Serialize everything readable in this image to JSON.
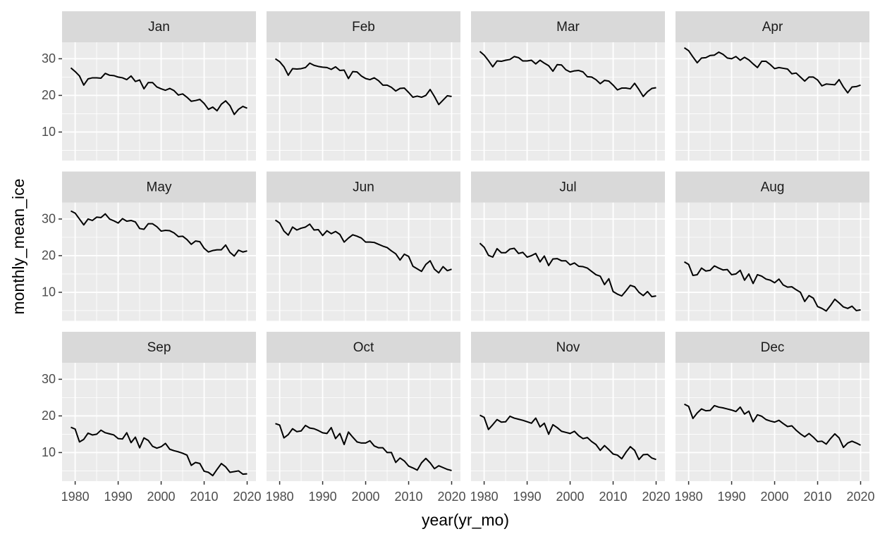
{
  "chart_data": {
    "type": "line",
    "xlabel": "year(yr_mo)",
    "ylabel": "monthly_mean_ice",
    "x": [
      1979,
      1980,
      1981,
      1982,
      1983,
      1984,
      1985,
      1986,
      1987,
      1988,
      1989,
      1990,
      1991,
      1992,
      1993,
      1994,
      1995,
      1996,
      1997,
      1998,
      1999,
      2000,
      2001,
      2002,
      2003,
      2004,
      2005,
      2006,
      2007,
      2008,
      2009,
      2010,
      2011,
      2012,
      2013,
      2014,
      2015,
      2016,
      2017,
      2018,
      2019,
      2020
    ],
    "xlim": [
      1976.95,
      2022.05
    ],
    "xticks": [
      1980,
      1990,
      2000,
      2010,
      2020
    ],
    "ylim": [
      2.2,
      34.5
    ],
    "yticks": [
      10,
      20,
      30
    ],
    "grid": true,
    "series": [
      {
        "name": "Jan",
        "color": "#000000",
        "values": [
          27.5,
          26.5,
          25.3,
          22.8,
          24.5,
          24.8,
          24.8,
          24.7,
          26.0,
          25.5,
          25.4,
          25.0,
          24.8,
          24.3,
          25.3,
          23.8,
          24.2,
          21.8,
          23.5,
          23.5,
          22.3,
          21.8,
          21.4,
          21.9,
          21.3,
          20.1,
          20.4,
          19.5,
          18.4,
          18.6,
          18.9,
          17.8,
          16.2,
          16.8,
          15.8,
          17.6,
          18.5,
          17.2,
          14.8,
          16.2,
          17.0,
          16.5
        ]
      },
      {
        "name": "Feb",
        "color": "#000000",
        "values": [
          30.0,
          29.2,
          27.8,
          25.5,
          27.3,
          27.2,
          27.3,
          27.6,
          28.8,
          28.2,
          27.9,
          27.7,
          27.6,
          27.1,
          27.8,
          26.8,
          26.9,
          24.6,
          26.5,
          26.4,
          25.3,
          24.6,
          24.3,
          24.8,
          24.0,
          22.8,
          22.8,
          22.2,
          21.2,
          21.9,
          22.0,
          20.8,
          19.5,
          19.8,
          19.5,
          20.0,
          21.6,
          19.7,
          17.5,
          18.7,
          19.9,
          19.7
        ]
      },
      {
        "name": "Mar",
        "color": "#000000",
        "values": [
          32.0,
          31.0,
          29.5,
          27.8,
          29.4,
          29.3,
          29.6,
          29.8,
          30.6,
          30.3,
          29.4,
          29.4,
          29.6,
          28.6,
          29.6,
          28.8,
          28.1,
          26.6,
          28.4,
          28.3,
          27.0,
          26.4,
          26.7,
          26.8,
          26.4,
          25.1,
          25.0,
          24.3,
          23.2,
          24.1,
          23.9,
          22.8,
          21.5,
          22.0,
          22.0,
          21.8,
          23.3,
          21.6,
          19.7,
          21.0,
          21.9,
          22.1
        ]
      },
      {
        "name": "Apr",
        "color": "#000000",
        "values": [
          33.0,
          32.2,
          30.5,
          28.9,
          30.2,
          30.3,
          30.9,
          31.0,
          31.8,
          31.2,
          30.2,
          30.0,
          30.6,
          29.6,
          30.4,
          29.7,
          28.6,
          27.6,
          29.3,
          29.3,
          28.4,
          27.3,
          27.6,
          27.4,
          27.2,
          25.9,
          26.1,
          25.0,
          23.9,
          25.0,
          25.0,
          24.2,
          22.6,
          23.1,
          23.0,
          22.9,
          24.3,
          22.3,
          20.7,
          22.3,
          22.4,
          22.8
        ]
      },
      {
        "name": "May",
        "color": "#000000",
        "values": [
          32.2,
          31.6,
          30.0,
          28.4,
          30.0,
          29.6,
          30.5,
          30.4,
          31.4,
          30.0,
          29.5,
          28.9,
          30.1,
          29.4,
          29.6,
          29.2,
          27.4,
          27.2,
          28.7,
          28.7,
          27.9,
          26.7,
          26.9,
          26.8,
          26.2,
          25.2,
          25.3,
          24.4,
          23.1,
          24.0,
          23.8,
          22.0,
          21.0,
          21.4,
          21.6,
          21.6,
          22.9,
          20.9,
          19.9,
          21.5,
          21.0,
          21.3
        ]
      },
      {
        "name": "Jun",
        "color": "#000000",
        "values": [
          29.7,
          28.9,
          26.7,
          25.6,
          27.8,
          27.0,
          27.5,
          27.8,
          28.6,
          27.0,
          27.1,
          25.5,
          26.8,
          26.0,
          26.6,
          25.8,
          23.7,
          24.8,
          25.7,
          25.3,
          24.8,
          23.7,
          23.7,
          23.6,
          23.1,
          22.6,
          22.2,
          21.3,
          20.5,
          18.8,
          20.4,
          19.8,
          17.1,
          16.4,
          15.7,
          17.6,
          18.6,
          16.3,
          15.3,
          17.0,
          15.9,
          16.3
        ]
      },
      {
        "name": "Jul",
        "color": "#000000",
        "values": [
          23.4,
          22.3,
          20.1,
          19.6,
          21.9,
          20.8,
          20.8,
          21.8,
          22.0,
          20.6,
          20.9,
          19.6,
          20.0,
          20.6,
          18.3,
          19.9,
          17.3,
          19.1,
          19.2,
          18.6,
          18.6,
          17.5,
          18.0,
          17.1,
          17.0,
          16.6,
          15.7,
          14.8,
          14.4,
          12.1,
          13.7,
          10.2,
          9.5,
          9.0,
          10.4,
          11.9,
          11.5,
          10.0,
          9.1,
          10.2,
          8.8,
          9.0
        ]
      },
      {
        "name": "Aug",
        "color": "#000000",
        "values": [
          18.3,
          17.6,
          14.6,
          14.8,
          16.6,
          15.8,
          16.0,
          17.2,
          16.6,
          16.1,
          16.2,
          14.8,
          15.0,
          16.0,
          13.3,
          15.0,
          12.4,
          14.8,
          14.4,
          13.6,
          13.3,
          12.6,
          13.6,
          12.0,
          11.4,
          11.5,
          10.7,
          10.0,
          7.5,
          9.1,
          8.4,
          6.1,
          5.6,
          4.9,
          6.4,
          8.1,
          7.1,
          6.0,
          5.6,
          6.2,
          5.0,
          5.2
        ]
      },
      {
        "name": "Sep",
        "color": "#000000",
        "values": [
          16.9,
          16.4,
          12.9,
          13.6,
          15.3,
          14.8,
          15.0,
          16.1,
          15.4,
          15.1,
          14.8,
          13.8,
          13.7,
          15.4,
          12.7,
          14.2,
          11.3,
          14.0,
          13.3,
          11.7,
          11.2,
          11.6,
          12.5,
          10.9,
          10.5,
          10.2,
          9.8,
          9.3,
          6.5,
          7.3,
          7.0,
          4.9,
          4.6,
          3.7,
          5.4,
          7.0,
          6.1,
          4.6,
          4.8,
          5.0,
          4.1,
          4.2
        ]
      },
      {
        "name": "Oct",
        "color": "#000000",
        "values": [
          17.9,
          17.5,
          14.0,
          14.9,
          16.5,
          15.7,
          15.9,
          17.4,
          16.7,
          16.5,
          16.0,
          15.4,
          15.2,
          16.8,
          13.8,
          15.2,
          12.2,
          15.6,
          14.2,
          12.9,
          12.6,
          12.6,
          13.2,
          11.8,
          11.3,
          11.3,
          10.0,
          10.0,
          7.3,
          8.5,
          7.7,
          6.3,
          5.8,
          5.2,
          7.2,
          8.4,
          7.2,
          5.6,
          6.4,
          5.9,
          5.4,
          5.1
        ]
      },
      {
        "name": "Nov",
        "color": "#000000",
        "values": [
          20.2,
          19.6,
          16.3,
          17.6,
          19.0,
          18.3,
          18.4,
          19.9,
          19.4,
          19.1,
          18.8,
          18.4,
          18.0,
          19.4,
          17.0,
          18.0,
          15.0,
          17.6,
          16.8,
          15.8,
          15.5,
          15.2,
          15.8,
          14.6,
          13.8,
          14.1,
          13.0,
          12.2,
          10.6,
          11.9,
          10.8,
          9.6,
          9.3,
          8.3,
          10.1,
          11.6,
          10.6,
          8.1,
          9.4,
          9.5,
          8.5,
          8.1
        ]
      },
      {
        "name": "Dec",
        "color": "#000000",
        "values": [
          23.2,
          22.6,
          19.3,
          20.8,
          21.9,
          21.4,
          21.5,
          22.8,
          22.4,
          22.2,
          21.9,
          21.6,
          21.2,
          22.4,
          20.5,
          21.3,
          18.4,
          20.3,
          19.9,
          19.0,
          18.6,
          18.3,
          18.8,
          17.9,
          17.1,
          17.3,
          16.1,
          15.1,
          14.3,
          15.2,
          14.2,
          13.0,
          13.1,
          12.3,
          13.8,
          15.1,
          14.0,
          11.4,
          12.6,
          13.1,
          12.6,
          12.0
        ]
      }
    ]
  }
}
